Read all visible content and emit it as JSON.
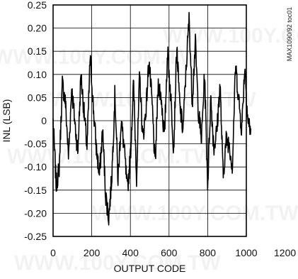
{
  "watermark": "WWW.100Y.COM.TW",
  "chart_data": {
    "type": "line",
    "title": "",
    "xlabel": "OUTPUT CODE",
    "ylabel": "INL (LSB)",
    "side_label": "MAX1090/92 toc01",
    "xlim": [
      0,
      1200
    ],
    "ylim": [
      -0.25,
      0.25
    ],
    "x_ticks": [
      0,
      200,
      400,
      600,
      800,
      1000,
      1200
    ],
    "x_tick_labels": [
      "0",
      "200",
      "400",
      "600",
      "800",
      "1000",
      "1200"
    ],
    "y_ticks": [
      0.25,
      0.2,
      0.15,
      0.1,
      0.05,
      0,
      -0.05,
      -0.1,
      -0.15,
      -0.2,
      -0.25
    ],
    "y_tick_labels": [
      "0.25",
      "0.20",
      "0.15",
      "0.10",
      "0.05",
      "0",
      "-0.05",
      "-0.10",
      "-0.15",
      "-0.20",
      "-0.25"
    ],
    "grid": true,
    "series": [
      {
        "color": "#000000",
        "x": [
          0,
          16,
          32,
          48,
          64,
          80,
          96,
          112,
          128,
          144,
          160,
          176,
          192,
          208,
          224,
          240,
          256,
          272,
          288,
          304,
          320,
          336,
          352,
          368,
          384,
          400,
          416,
          432,
          448,
          464,
          480,
          496,
          512,
          528,
          544,
          560,
          576,
          592,
          608,
          624,
          640,
          656,
          672,
          688,
          704,
          720,
          736,
          752,
          768,
          784,
          800,
          816,
          832,
          848,
          864,
          880,
          896,
          912,
          928,
          944,
          960,
          976,
          992,
          1008,
          1023
        ],
        "y": [
          0.0,
          -0.14,
          -0.1,
          0.08,
          0.04,
          -0.08,
          0.07,
          0.0,
          -0.07,
          0.1,
          0.02,
          -0.06,
          0.14,
          0.03,
          -0.06,
          -0.12,
          -0.02,
          -0.16,
          -0.21,
          -0.12,
          0.06,
          -0.13,
          0.0,
          -0.06,
          -0.15,
          -0.08,
          0.08,
          -0.12,
          0.1,
          -0.04,
          0.02,
          0.13,
          0.04,
          -0.1,
          0.08,
          0.05,
          -0.04,
          0.15,
          0.06,
          -0.06,
          0.16,
          0.03,
          -0.02,
          0.11,
          0.22,
          0.04,
          0.17,
          0.02,
          -0.04,
          0.1,
          -0.14,
          0.05,
          -0.06,
          -0.02,
          0.08,
          -0.12,
          -0.04,
          -0.05,
          -0.1,
          0.12,
          0.05,
          -0.02,
          0.12,
          0.0,
          -0.02
        ]
      }
    ]
  }
}
